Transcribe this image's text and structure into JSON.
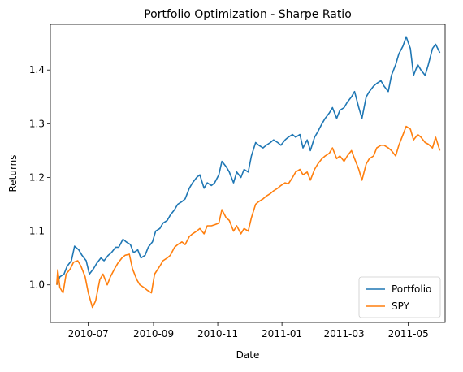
{
  "chart_data": {
    "type": "line",
    "title": "Portfolio Optimization - Sharpe Ratio",
    "xlabel": "Date",
    "ylabel": "Returns",
    "xlim": [
      "2010-05-26",
      "2011-06-05"
    ],
    "ylim": [
      0.93,
      1.485
    ],
    "x_ticks": [
      "2010-07",
      "2010-09",
      "2010-11",
      "2011-01",
      "2011-03",
      "2011-05"
    ],
    "y_ticks": [
      1.0,
      1.1,
      1.2,
      1.3,
      1.4
    ],
    "grid": false,
    "legend_position": "lower-right",
    "series": [
      {
        "name": "Portfolio",
        "color": "#1f77b4",
        "points": [
          [
            "2010-06-01",
            1.0
          ],
          [
            "2010-06-04",
            1.015
          ],
          [
            "2010-06-08",
            1.02
          ],
          [
            "2010-06-11",
            1.035
          ],
          [
            "2010-06-15",
            1.045
          ],
          [
            "2010-06-18",
            1.072
          ],
          [
            "2010-06-22",
            1.065
          ],
          [
            "2010-06-25",
            1.055
          ],
          [
            "2010-06-29",
            1.045
          ],
          [
            "2010-07-02",
            1.02
          ],
          [
            "2010-07-06",
            1.03
          ],
          [
            "2010-07-09",
            1.04
          ],
          [
            "2010-07-13",
            1.05
          ],
          [
            "2010-07-16",
            1.045
          ],
          [
            "2010-07-20",
            1.055
          ],
          [
            "2010-07-23",
            1.06
          ],
          [
            "2010-07-27",
            1.07
          ],
          [
            "2010-07-30",
            1.07
          ],
          [
            "2010-08-03",
            1.085
          ],
          [
            "2010-08-06",
            1.08
          ],
          [
            "2010-08-10",
            1.075
          ],
          [
            "2010-08-13",
            1.06
          ],
          [
            "2010-08-17",
            1.065
          ],
          [
            "2010-08-20",
            1.05
          ],
          [
            "2010-08-24",
            1.055
          ],
          [
            "2010-08-27",
            1.07
          ],
          [
            "2010-08-31",
            1.08
          ],
          [
            "2010-09-03",
            1.1
          ],
          [
            "2010-09-07",
            1.105
          ],
          [
            "2010-09-10",
            1.115
          ],
          [
            "2010-09-14",
            1.12
          ],
          [
            "2010-09-17",
            1.13
          ],
          [
            "2010-09-21",
            1.14
          ],
          [
            "2010-09-24",
            1.15
          ],
          [
            "2010-09-28",
            1.155
          ],
          [
            "2010-10-01",
            1.16
          ],
          [
            "2010-10-05",
            1.18
          ],
          [
            "2010-10-08",
            1.19
          ],
          [
            "2010-10-12",
            1.2
          ],
          [
            "2010-10-15",
            1.205
          ],
          [
            "2010-10-19",
            1.18
          ],
          [
            "2010-10-22",
            1.19
          ],
          [
            "2010-10-26",
            1.185
          ],
          [
            "2010-10-29",
            1.19
          ],
          [
            "2010-11-02",
            1.205
          ],
          [
            "2010-11-05",
            1.23
          ],
          [
            "2010-11-09",
            1.22
          ],
          [
            "2010-11-12",
            1.21
          ],
          [
            "2010-11-16",
            1.19
          ],
          [
            "2010-11-19",
            1.21
          ],
          [
            "2010-11-23",
            1.2
          ],
          [
            "2010-11-26",
            1.215
          ],
          [
            "2010-11-30",
            1.21
          ],
          [
            "2010-12-03",
            1.24
          ],
          [
            "2010-12-07",
            1.265
          ],
          [
            "2010-12-10",
            1.26
          ],
          [
            "2010-12-14",
            1.255
          ],
          [
            "2010-12-17",
            1.26
          ],
          [
            "2010-12-21",
            1.265
          ],
          [
            "2010-12-24",
            1.27
          ],
          [
            "2010-12-28",
            1.265
          ],
          [
            "2010-12-31",
            1.26
          ],
          [
            "2011-01-04",
            1.27
          ],
          [
            "2011-01-07",
            1.275
          ],
          [
            "2011-01-11",
            1.28
          ],
          [
            "2011-01-14",
            1.275
          ],
          [
            "2011-01-18",
            1.28
          ],
          [
            "2011-01-21",
            1.255
          ],
          [
            "2011-01-25",
            1.27
          ],
          [
            "2011-01-28",
            1.25
          ],
          [
            "2011-02-01",
            1.275
          ],
          [
            "2011-02-04",
            1.285
          ],
          [
            "2011-02-08",
            1.3
          ],
          [
            "2011-02-11",
            1.31
          ],
          [
            "2011-02-15",
            1.32
          ],
          [
            "2011-02-18",
            1.33
          ],
          [
            "2011-02-22",
            1.31
          ],
          [
            "2011-02-25",
            1.325
          ],
          [
            "2011-03-01",
            1.33
          ],
          [
            "2011-03-04",
            1.34
          ],
          [
            "2011-03-08",
            1.35
          ],
          [
            "2011-03-11",
            1.36
          ],
          [
            "2011-03-15",
            1.33
          ],
          [
            "2011-03-18",
            1.31
          ],
          [
            "2011-03-22",
            1.35
          ],
          [
            "2011-03-25",
            1.36
          ],
          [
            "2011-03-29",
            1.37
          ],
          [
            "2011-04-01",
            1.375
          ],
          [
            "2011-04-05",
            1.38
          ],
          [
            "2011-04-08",
            1.37
          ],
          [
            "2011-04-12",
            1.36
          ],
          [
            "2011-04-15",
            1.39
          ],
          [
            "2011-04-19",
            1.41
          ],
          [
            "2011-04-22",
            1.43
          ],
          [
            "2011-04-26",
            1.445
          ],
          [
            "2011-04-29",
            1.462
          ],
          [
            "2011-05-03",
            1.44
          ],
          [
            "2011-05-06",
            1.39
          ],
          [
            "2011-05-10",
            1.41
          ],
          [
            "2011-05-13",
            1.4
          ],
          [
            "2011-05-17",
            1.39
          ],
          [
            "2011-05-20",
            1.41
          ],
          [
            "2011-05-24",
            1.44
          ],
          [
            "2011-05-27",
            1.448
          ],
          [
            "2011-05-31",
            1.432
          ]
        ]
      },
      {
        "name": "SPY",
        "color": "#ff7f0e",
        "points": [
          [
            "2010-06-01",
            1.0
          ],
          [
            "2010-06-02",
            1.028
          ],
          [
            "2010-06-04",
            0.995
          ],
          [
            "2010-06-07",
            0.985
          ],
          [
            "2010-06-10",
            1.02
          ],
          [
            "2010-06-14",
            1.03
          ],
          [
            "2010-06-17",
            1.042
          ],
          [
            "2010-06-21",
            1.045
          ],
          [
            "2010-06-24",
            1.035
          ],
          [
            "2010-06-28",
            1.015
          ],
          [
            "2010-07-01",
            0.985
          ],
          [
            "2010-07-05",
            0.958
          ],
          [
            "2010-07-08",
            0.97
          ],
          [
            "2010-07-12",
            1.01
          ],
          [
            "2010-07-15",
            1.02
          ],
          [
            "2010-07-19",
            1.0
          ],
          [
            "2010-07-22",
            1.015
          ],
          [
            "2010-07-26",
            1.03
          ],
          [
            "2010-07-29",
            1.04
          ],
          [
            "2010-08-02",
            1.05
          ],
          [
            "2010-08-05",
            1.055
          ],
          [
            "2010-08-09",
            1.057
          ],
          [
            "2010-08-12",
            1.03
          ],
          [
            "2010-08-16",
            1.01
          ],
          [
            "2010-08-19",
            1.0
          ],
          [
            "2010-08-23",
            0.995
          ],
          [
            "2010-08-26",
            0.99
          ],
          [
            "2010-08-30",
            0.985
          ],
          [
            "2010-09-02",
            1.02
          ],
          [
            "2010-09-07",
            1.035
          ],
          [
            "2010-09-10",
            1.045
          ],
          [
            "2010-09-14",
            1.05
          ],
          [
            "2010-09-17",
            1.055
          ],
          [
            "2010-09-21",
            1.07
          ],
          [
            "2010-09-24",
            1.075
          ],
          [
            "2010-09-28",
            1.08
          ],
          [
            "2010-10-01",
            1.075
          ],
          [
            "2010-10-05",
            1.09
          ],
          [
            "2010-10-08",
            1.095
          ],
          [
            "2010-10-12",
            1.1
          ],
          [
            "2010-10-15",
            1.105
          ],
          [
            "2010-10-19",
            1.095
          ],
          [
            "2010-10-22",
            1.11
          ],
          [
            "2010-10-26",
            1.11
          ],
          [
            "2010-10-29",
            1.112
          ],
          [
            "2010-11-02",
            1.115
          ],
          [
            "2010-11-05",
            1.14
          ],
          [
            "2010-11-09",
            1.125
          ],
          [
            "2010-11-12",
            1.12
          ],
          [
            "2010-11-16",
            1.1
          ],
          [
            "2010-11-19",
            1.11
          ],
          [
            "2010-11-23",
            1.095
          ],
          [
            "2010-11-26",
            1.105
          ],
          [
            "2010-11-30",
            1.1
          ],
          [
            "2010-12-03",
            1.125
          ],
          [
            "2010-12-07",
            1.15
          ],
          [
            "2010-12-10",
            1.155
          ],
          [
            "2010-12-14",
            1.16
          ],
          [
            "2010-12-17",
            1.165
          ],
          [
            "2010-12-21",
            1.17
          ],
          [
            "2010-12-24",
            1.175
          ],
          [
            "2010-12-28",
            1.18
          ],
          [
            "2010-12-31",
            1.185
          ],
          [
            "2011-01-04",
            1.19
          ],
          [
            "2011-01-07",
            1.188
          ],
          [
            "2011-01-11",
            1.2
          ],
          [
            "2011-01-14",
            1.21
          ],
          [
            "2011-01-18",
            1.215
          ],
          [
            "2011-01-21",
            1.205
          ],
          [
            "2011-01-25",
            1.21
          ],
          [
            "2011-01-28",
            1.195
          ],
          [
            "2011-02-01",
            1.215
          ],
          [
            "2011-02-04",
            1.225
          ],
          [
            "2011-02-08",
            1.235
          ],
          [
            "2011-02-11",
            1.24
          ],
          [
            "2011-02-15",
            1.245
          ],
          [
            "2011-02-18",
            1.255
          ],
          [
            "2011-02-22",
            1.235
          ],
          [
            "2011-02-25",
            1.24
          ],
          [
            "2011-03-01",
            1.23
          ],
          [
            "2011-03-04",
            1.24
          ],
          [
            "2011-03-08",
            1.25
          ],
          [
            "2011-03-11",
            1.235
          ],
          [
            "2011-03-15",
            1.215
          ],
          [
            "2011-03-18",
            1.195
          ],
          [
            "2011-03-22",
            1.225
          ],
          [
            "2011-03-25",
            1.235
          ],
          [
            "2011-03-29",
            1.24
          ],
          [
            "2011-04-01",
            1.255
          ],
          [
            "2011-04-05",
            1.26
          ],
          [
            "2011-04-08",
            1.26
          ],
          [
            "2011-04-12",
            1.255
          ],
          [
            "2011-04-15",
            1.25
          ],
          [
            "2011-04-19",
            1.24
          ],
          [
            "2011-04-22",
            1.26
          ],
          [
            "2011-04-26",
            1.28
          ],
          [
            "2011-04-29",
            1.295
          ],
          [
            "2011-05-03",
            1.29
          ],
          [
            "2011-05-06",
            1.27
          ],
          [
            "2011-05-10",
            1.28
          ],
          [
            "2011-05-13",
            1.275
          ],
          [
            "2011-05-17",
            1.265
          ],
          [
            "2011-05-20",
            1.262
          ],
          [
            "2011-05-24",
            1.255
          ],
          [
            "2011-05-27",
            1.275
          ],
          [
            "2011-05-31",
            1.25
          ]
        ]
      }
    ]
  }
}
